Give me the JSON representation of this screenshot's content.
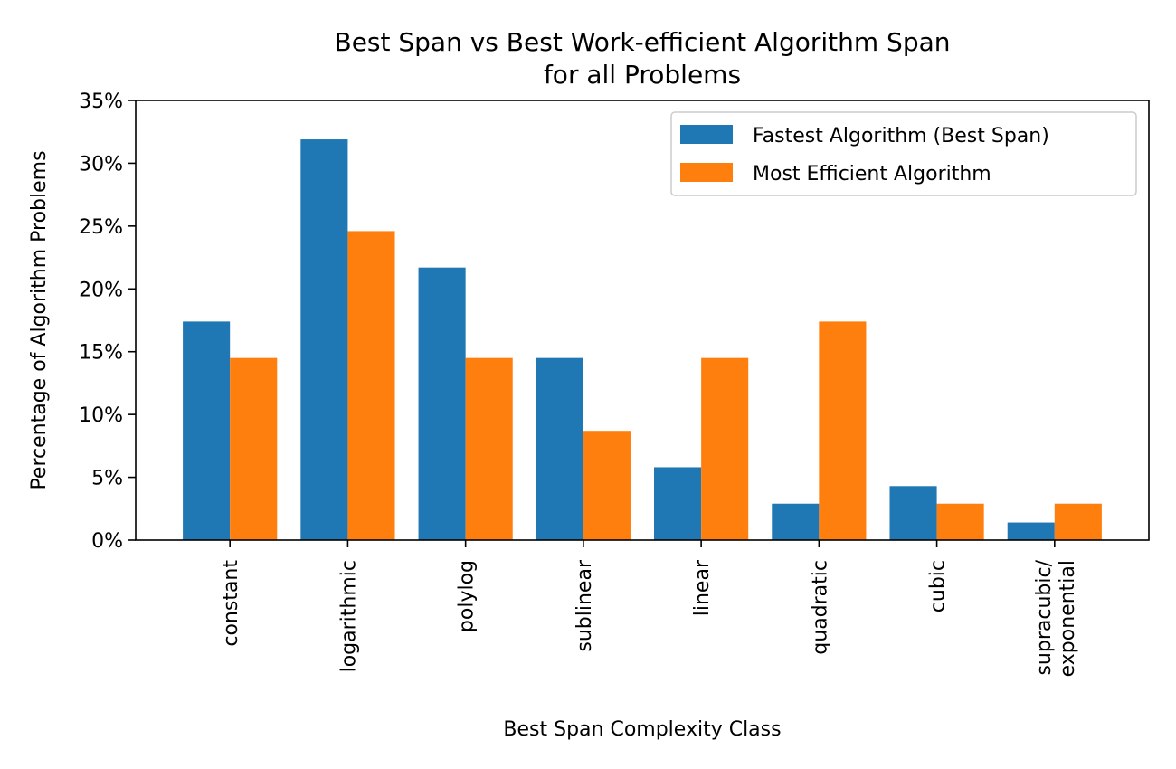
{
  "chart_data": {
    "type": "bar",
    "title": [
      "Best Span vs Best Work-efficient Algorithm Span",
      "for all Problems"
    ],
    "xlabel": "Best Span Complexity Class",
    "ylabel": "Percentage of Algorithm Problems",
    "categories": [
      [
        "constant"
      ],
      [
        "logarithmic"
      ],
      [
        "polylog"
      ],
      [
        "sublinear"
      ],
      [
        "linear"
      ],
      [
        "quadratic"
      ],
      [
        "cubic"
      ],
      [
        "supracubic/",
        "exponential"
      ]
    ],
    "series": [
      {
        "name": "Fastest Algorithm (Best Span)",
        "color": "#1f77b4",
        "values": [
          17.4,
          31.9,
          21.7,
          14.5,
          5.8,
          2.9,
          4.3,
          1.4
        ]
      },
      {
        "name": "Most Efficient Algorithm",
        "color": "#ff7f0e",
        "values": [
          14.5,
          24.6,
          14.5,
          8.7,
          14.5,
          17.4,
          2.9,
          2.9
        ]
      }
    ],
    "ylim": [
      0,
      35
    ],
    "yticks": [
      0,
      5,
      10,
      15,
      20,
      25,
      30,
      35
    ],
    "ytick_labels": [
      "0%",
      "5%",
      "10%",
      "15%",
      "20%",
      "25%",
      "30%",
      "35%"
    ],
    "grid": false,
    "legend_position": "top-right"
  }
}
